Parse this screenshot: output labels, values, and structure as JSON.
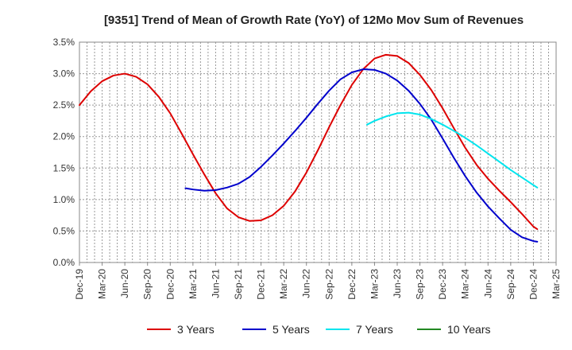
{
  "chart_data": {
    "type": "line",
    "title": "[9351]  Trend of Mean of Growth Rate (YoY) of 12Mo Mov Sum of Revenues",
    "xlabel": "",
    "ylabel": "",
    "ylim": [
      0,
      3.5
    ],
    "y_ticks": [
      "0.0%",
      "0.5%",
      "1.0%",
      "1.5%",
      "2.0%",
      "2.5%",
      "3.0%",
      "3.5%"
    ],
    "y_tick_values": [
      0,
      0.5,
      1.0,
      1.5,
      2.0,
      2.5,
      3.0,
      3.5
    ],
    "x_ticks": [
      "Dec-19",
      "Mar-20",
      "Jun-20",
      "Sep-20",
      "Dec-20",
      "Mar-21",
      "Jun-21",
      "Sep-21",
      "Dec-21",
      "Mar-22",
      "Jun-22",
      "Sep-22",
      "Dec-22",
      "Mar-23",
      "Jun-23",
      "Sep-23",
      "Dec-23",
      "Mar-24",
      "Jun-24",
      "Sep-24",
      "Dec-24",
      "Mar-25"
    ],
    "x_unit": "quarter index from Dec-19",
    "grid": true,
    "legend_position": "bottom",
    "series": [
      {
        "name": "3 Years",
        "color": "#dd0000",
        "points": [
          [
            0,
            2.5
          ],
          [
            0.5,
            2.72
          ],
          [
            1,
            2.88
          ],
          [
            1.5,
            2.97
          ],
          [
            2,
            3.0
          ],
          [
            2.5,
            2.95
          ],
          [
            3,
            2.83
          ],
          [
            3.5,
            2.63
          ],
          [
            4,
            2.37
          ],
          [
            4.5,
            2.05
          ],
          [
            5,
            1.72
          ],
          [
            5.5,
            1.4
          ],
          [
            6,
            1.1
          ],
          [
            6.5,
            0.86
          ],
          [
            7,
            0.72
          ],
          [
            7.5,
            0.66
          ],
          [
            8,
            0.67
          ],
          [
            8.5,
            0.75
          ],
          [
            9,
            0.9
          ],
          [
            9.5,
            1.13
          ],
          [
            10,
            1.43
          ],
          [
            10.5,
            1.78
          ],
          [
            11,
            2.15
          ],
          [
            11.5,
            2.5
          ],
          [
            12,
            2.82
          ],
          [
            12.5,
            3.07
          ],
          [
            13,
            3.24
          ],
          [
            13.5,
            3.3
          ],
          [
            14,
            3.28
          ],
          [
            14.5,
            3.17
          ],
          [
            15,
            2.98
          ],
          [
            15.5,
            2.74
          ],
          [
            16,
            2.45
          ],
          [
            16.5,
            2.13
          ],
          [
            17,
            1.82
          ],
          [
            17.5,
            1.55
          ],
          [
            18,
            1.33
          ],
          [
            18.5,
            1.14
          ],
          [
            19,
            0.96
          ],
          [
            19.5,
            0.77
          ],
          [
            20,
            0.57
          ],
          [
            20.17,
            0.53
          ]
        ]
      },
      {
        "name": "5 Years",
        "color": "#0000cc",
        "points": [
          [
            4.67,
            1.18
          ],
          [
            5,
            1.16
          ],
          [
            5.5,
            1.14
          ],
          [
            6,
            1.15
          ],
          [
            6.5,
            1.19
          ],
          [
            7,
            1.25
          ],
          [
            7.5,
            1.36
          ],
          [
            8,
            1.52
          ],
          [
            8.5,
            1.7
          ],
          [
            9,
            1.89
          ],
          [
            9.5,
            2.09
          ],
          [
            10,
            2.3
          ],
          [
            10.5,
            2.52
          ],
          [
            11,
            2.73
          ],
          [
            11.5,
            2.91
          ],
          [
            12,
            3.02
          ],
          [
            12.5,
            3.07
          ],
          [
            13,
            3.06
          ],
          [
            13.5,
            3.0
          ],
          [
            14,
            2.89
          ],
          [
            14.5,
            2.73
          ],
          [
            15,
            2.52
          ],
          [
            15.5,
            2.27
          ],
          [
            16,
            1.97
          ],
          [
            16.5,
            1.66
          ],
          [
            17,
            1.37
          ],
          [
            17.5,
            1.11
          ],
          [
            18,
            0.89
          ],
          [
            18.5,
            0.7
          ],
          [
            19,
            0.52
          ],
          [
            19.5,
            0.4
          ],
          [
            20,
            0.34
          ],
          [
            20.17,
            0.33
          ]
        ]
      },
      {
        "name": "7 Years",
        "color": "#00e5ee",
        "points": [
          [
            12.67,
            2.19
          ],
          [
            13,
            2.25
          ],
          [
            13.5,
            2.32
          ],
          [
            14,
            2.37
          ],
          [
            14.5,
            2.38
          ],
          [
            15,
            2.35
          ],
          [
            15.5,
            2.28
          ],
          [
            16,
            2.19
          ],
          [
            16.5,
            2.09
          ],
          [
            17,
            1.98
          ],
          [
            17.5,
            1.86
          ],
          [
            18,
            1.73
          ],
          [
            18.5,
            1.6
          ],
          [
            19,
            1.47
          ],
          [
            19.5,
            1.35
          ],
          [
            20,
            1.23
          ],
          [
            20.17,
            1.19
          ]
        ]
      },
      {
        "name": "10 Years",
        "color": "#228822",
        "points": []
      }
    ]
  }
}
